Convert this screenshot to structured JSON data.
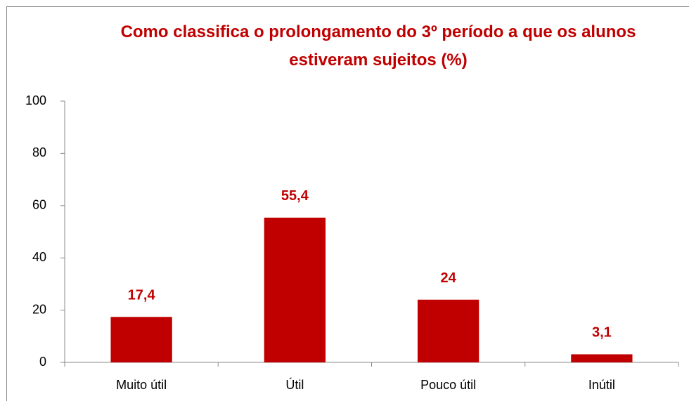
{
  "chart_data": {
    "type": "bar",
    "title": "Como classifica o prolongamento do 3º período a que os alunos estiveram sujeitos (%)",
    "categories": [
      "Muito útil",
      "Útil",
      "Pouco útil",
      "Inútil"
    ],
    "values": [
      17.4,
      55.4,
      24,
      3.1
    ],
    "value_labels": [
      "17,4",
      "55,4",
      "24",
      "3,1"
    ],
    "color": "#c00000",
    "ylim": [
      0,
      100
    ],
    "yticks": [
      0,
      20,
      40,
      60,
      80,
      100
    ],
    "grid": false
  }
}
